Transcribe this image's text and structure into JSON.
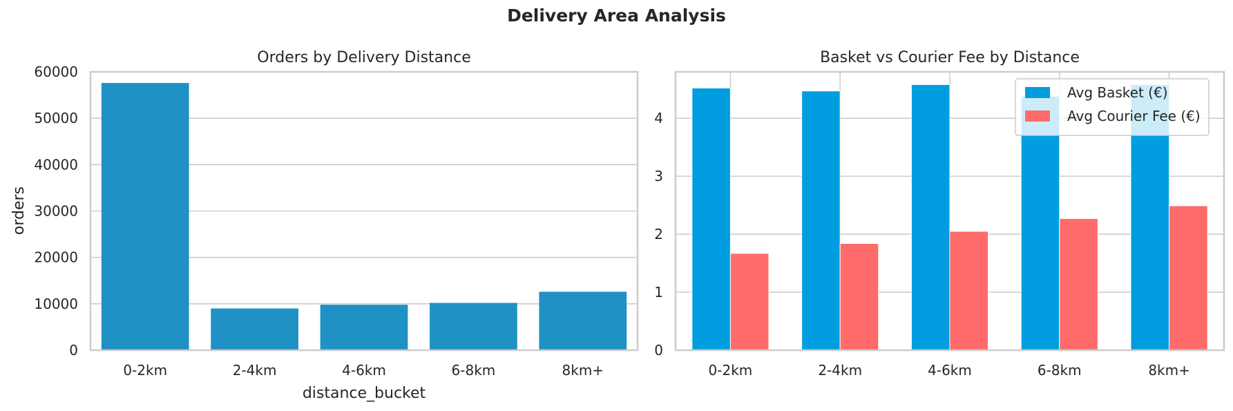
{
  "suptitle": "Delivery Area Analysis",
  "colors": {
    "bar_orders": "#1f91c4",
    "avg_basket": "#009ee0",
    "avg_courier_fee": "#ff6b6b",
    "grid": "#cccccc",
    "spine": "#cccccc"
  },
  "chart_data": [
    {
      "type": "bar",
      "title": "Orders by Delivery Distance",
      "xlabel": "distance_bucket",
      "ylabel": "orders",
      "categories": [
        "0-2km",
        "2-4km",
        "4-6km",
        "6-8km",
        "8km+"
      ],
      "values": [
        57600,
        9000,
        9800,
        10200,
        12600
      ],
      "ylim": [
        0,
        60000
      ],
      "yticks": [
        "0",
        "10000",
        "20000",
        "30000",
        "40000",
        "50000",
        "60000"
      ],
      "grid": "horizontal"
    },
    {
      "type": "bar",
      "title": "Basket vs Courier Fee by Distance",
      "xlabel": "",
      "ylabel": "",
      "categories": [
        "0-2km",
        "2-4km",
        "4-6km",
        "6-8km",
        "8km+"
      ],
      "series": [
        {
          "name": "Avg Basket (€)",
          "values": [
            4.52,
            4.47,
            4.58,
            4.38,
            4.58
          ]
        },
        {
          "name": "Avg Courier Fee (€)",
          "values": [
            1.67,
            1.84,
            2.05,
            2.27,
            2.49
          ]
        }
      ],
      "ylim": [
        0,
        4.8
      ],
      "yticks": [
        "0",
        "1",
        "2",
        "3",
        "4"
      ],
      "grid": "both",
      "legend": "top-right"
    }
  ]
}
